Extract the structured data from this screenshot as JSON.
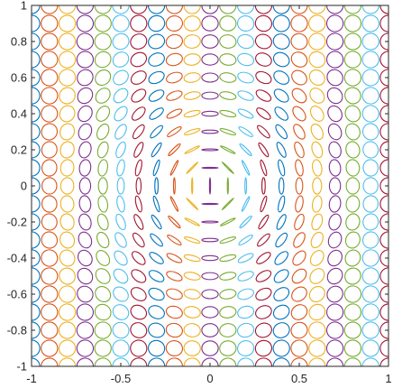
{
  "chart_data": {
    "type": "scatter",
    "glyph": "polarization-ellipse",
    "title": "",
    "xlabel": "",
    "ylabel": "",
    "xlim": [
      -1,
      1
    ],
    "ylim": [
      -1,
      1
    ],
    "x_ticks": [
      -1,
      -0.5,
      0,
      0.5,
      1
    ],
    "x_tick_labels": [
      "-1",
      "-0.5",
      "0",
      "0.5",
      "1"
    ],
    "y_ticks": [
      -1,
      -0.8,
      -0.6,
      -0.4,
      -0.2,
      0,
      0.2,
      0.4,
      0.6,
      0.8,
      1
    ],
    "y_tick_labels": [
      "-1",
      "-0.8",
      "-0.6",
      "-0.4",
      "-0.2",
      "0",
      "0.2",
      "0.4",
      "0.6",
      "0.8",
      "1"
    ],
    "grid": false,
    "box": true,
    "grid_points": {
      "x": [
        -1,
        -0.9,
        -0.8,
        -0.7,
        -0.6,
        -0.5,
        -0.4,
        -0.3,
        -0.2,
        -0.1,
        0,
        0.1,
        0.2,
        0.3,
        0.4,
        0.5,
        0.6,
        0.7,
        0.8,
        0.9,
        1
      ],
      "y": [
        -1,
        -0.9,
        -0.8,
        -0.7,
        -0.6,
        -0.5,
        -0.4,
        -0.3,
        -0.2,
        -0.1,
        0,
        0.1,
        0.2,
        0.3,
        0.4,
        0.5,
        0.6,
        0.7,
        0.8,
        0.9,
        1
      ]
    },
    "orientation": "tangential (perpendicular to radius)",
    "ellipticity_by_radius": [
      0.0,
      0.1,
      0.3,
      0.55,
      0.8,
      1.0
    ],
    "colors": [
      "#0072BD",
      "#D95319",
      "#EDB120",
      "#7E2F8E",
      "#77AC30",
      "#4DBEEE",
      "#A2142F"
    ]
  }
}
